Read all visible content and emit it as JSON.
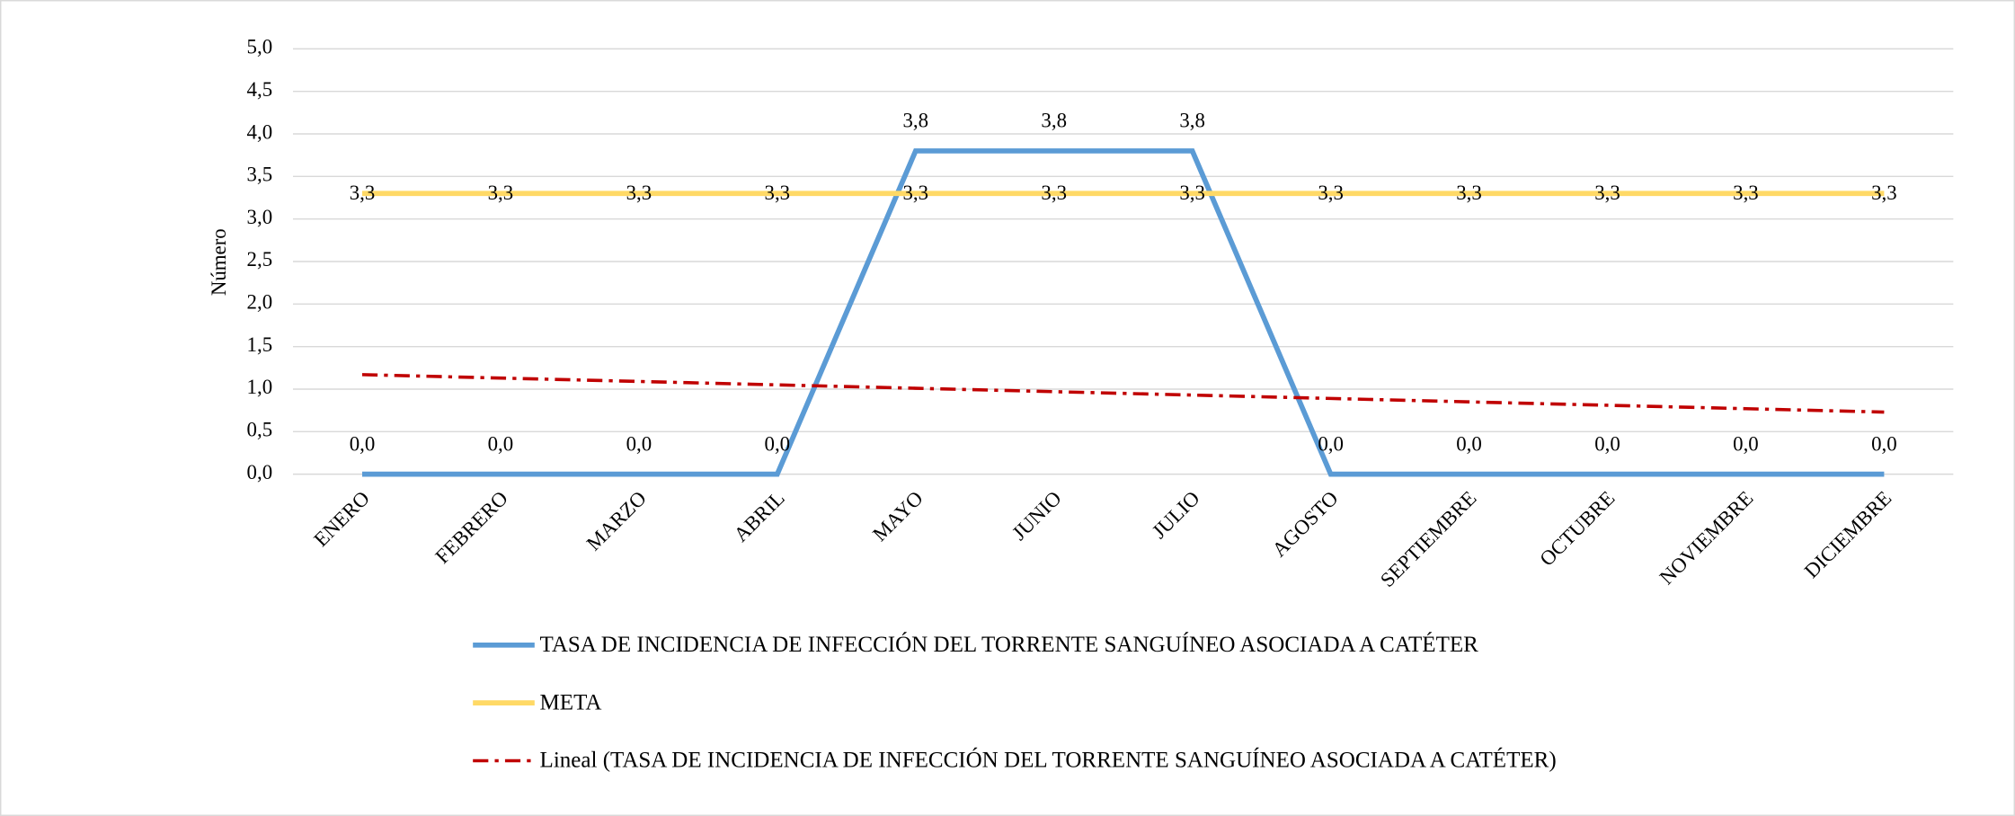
{
  "chart_data": {
    "type": "line",
    "y_label": "Número",
    "categories": [
      "ENERO",
      "FEBRERO",
      "MARZO",
      "ABRIL",
      "MAYO",
      "JUNIO",
      "JULIO",
      "AGOSTO",
      "SEPTIEMBRE",
      "OCTUBRE",
      "NOVIEMBRE",
      "DICIEMBRE"
    ],
    "series": [
      {
        "name": "TASA DE INCIDENCIA DE INFECCIÓN DEL TORRENTE SANGUÍNEO ASOCIADA A CATÉTER",
        "color": "#5b9bd5",
        "values": [
          0,
          0,
          0,
          0,
          3.8,
          3.8,
          3.8,
          0,
          0,
          0,
          0,
          0
        ],
        "value_labels": [
          "0,0",
          "0,0",
          "0,0",
          "0,0",
          "3,8",
          "3,8",
          "3,8",
          "0,0",
          "0,0",
          "0,0",
          "0,0",
          "0,0"
        ]
      },
      {
        "name": "META",
        "color": "#ffd966",
        "values": [
          3.3,
          3.3,
          3.3,
          3.3,
          3.3,
          3.3,
          3.3,
          3.3,
          3.3,
          3.3,
          3.3,
          3.3
        ],
        "value_labels": [
          "3,3",
          "3,3",
          "3,3",
          "3,3",
          "3,3",
          "3,3",
          "3,3",
          "3,3",
          "3,3",
          "3,3",
          "3,3",
          "3,3"
        ]
      },
      {
        "name": "Lineal (TASA DE INCIDENCIA DE INFECCIÓN DEL TORRENTE SANGUÍNEO ASOCIADA A CATÉTER)",
        "color": "#c00000",
        "dash": true,
        "values": [
          1.17,
          1.13,
          1.09,
          1.05,
          1.01,
          0.97,
          0.93,
          0.89,
          0.85,
          0.81,
          0.77,
          0.73
        ]
      }
    ],
    "ylim": [
      0,
      5
    ],
    "yticks": [
      {
        "value": 0,
        "label": "0,0"
      },
      {
        "value": 0.5,
        "label": "0,5"
      },
      {
        "value": 1,
        "label": "1,0"
      },
      {
        "value": 1.5,
        "label": "1,5"
      },
      {
        "value": 2,
        "label": "2,0"
      },
      {
        "value": 2.5,
        "label": "2,5"
      },
      {
        "value": 3,
        "label": "3,0"
      },
      {
        "value": 3.5,
        "label": "3,5"
      },
      {
        "value": 4,
        "label": "4,0"
      },
      {
        "value": 4.5,
        "label": "4,5"
      },
      {
        "value": 5,
        "label": "5,0"
      }
    ],
    "grid": true,
    "legend": "bottom"
  }
}
